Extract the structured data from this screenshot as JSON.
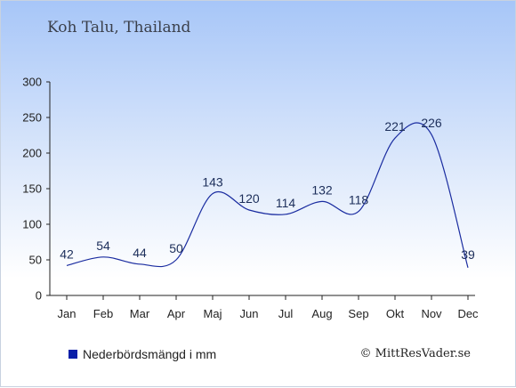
{
  "chart_data": {
    "type": "line",
    "title": "Koh Talu, Thailand",
    "categories": [
      "Jan",
      "Feb",
      "Mar",
      "Apr",
      "Maj",
      "Jun",
      "Jul",
      "Aug",
      "Sep",
      "Okt",
      "Nov",
      "Dec"
    ],
    "series": [
      {
        "name": "Nederbördsmängd i mm",
        "values": [
          42,
          54,
          44,
          50,
          143,
          120,
          114,
          132,
          118,
          221,
          226,
          39
        ]
      }
    ],
    "yticks": [
      0,
      50,
      100,
      150,
      200,
      250,
      300
    ],
    "ylim": [
      0,
      300
    ],
    "grid": false,
    "legend": "bottom-left",
    "line_color": "#1a2ca0",
    "label_color": "#1c2e5a"
  },
  "footer": {
    "copyright": "© MittResVader.se"
  }
}
